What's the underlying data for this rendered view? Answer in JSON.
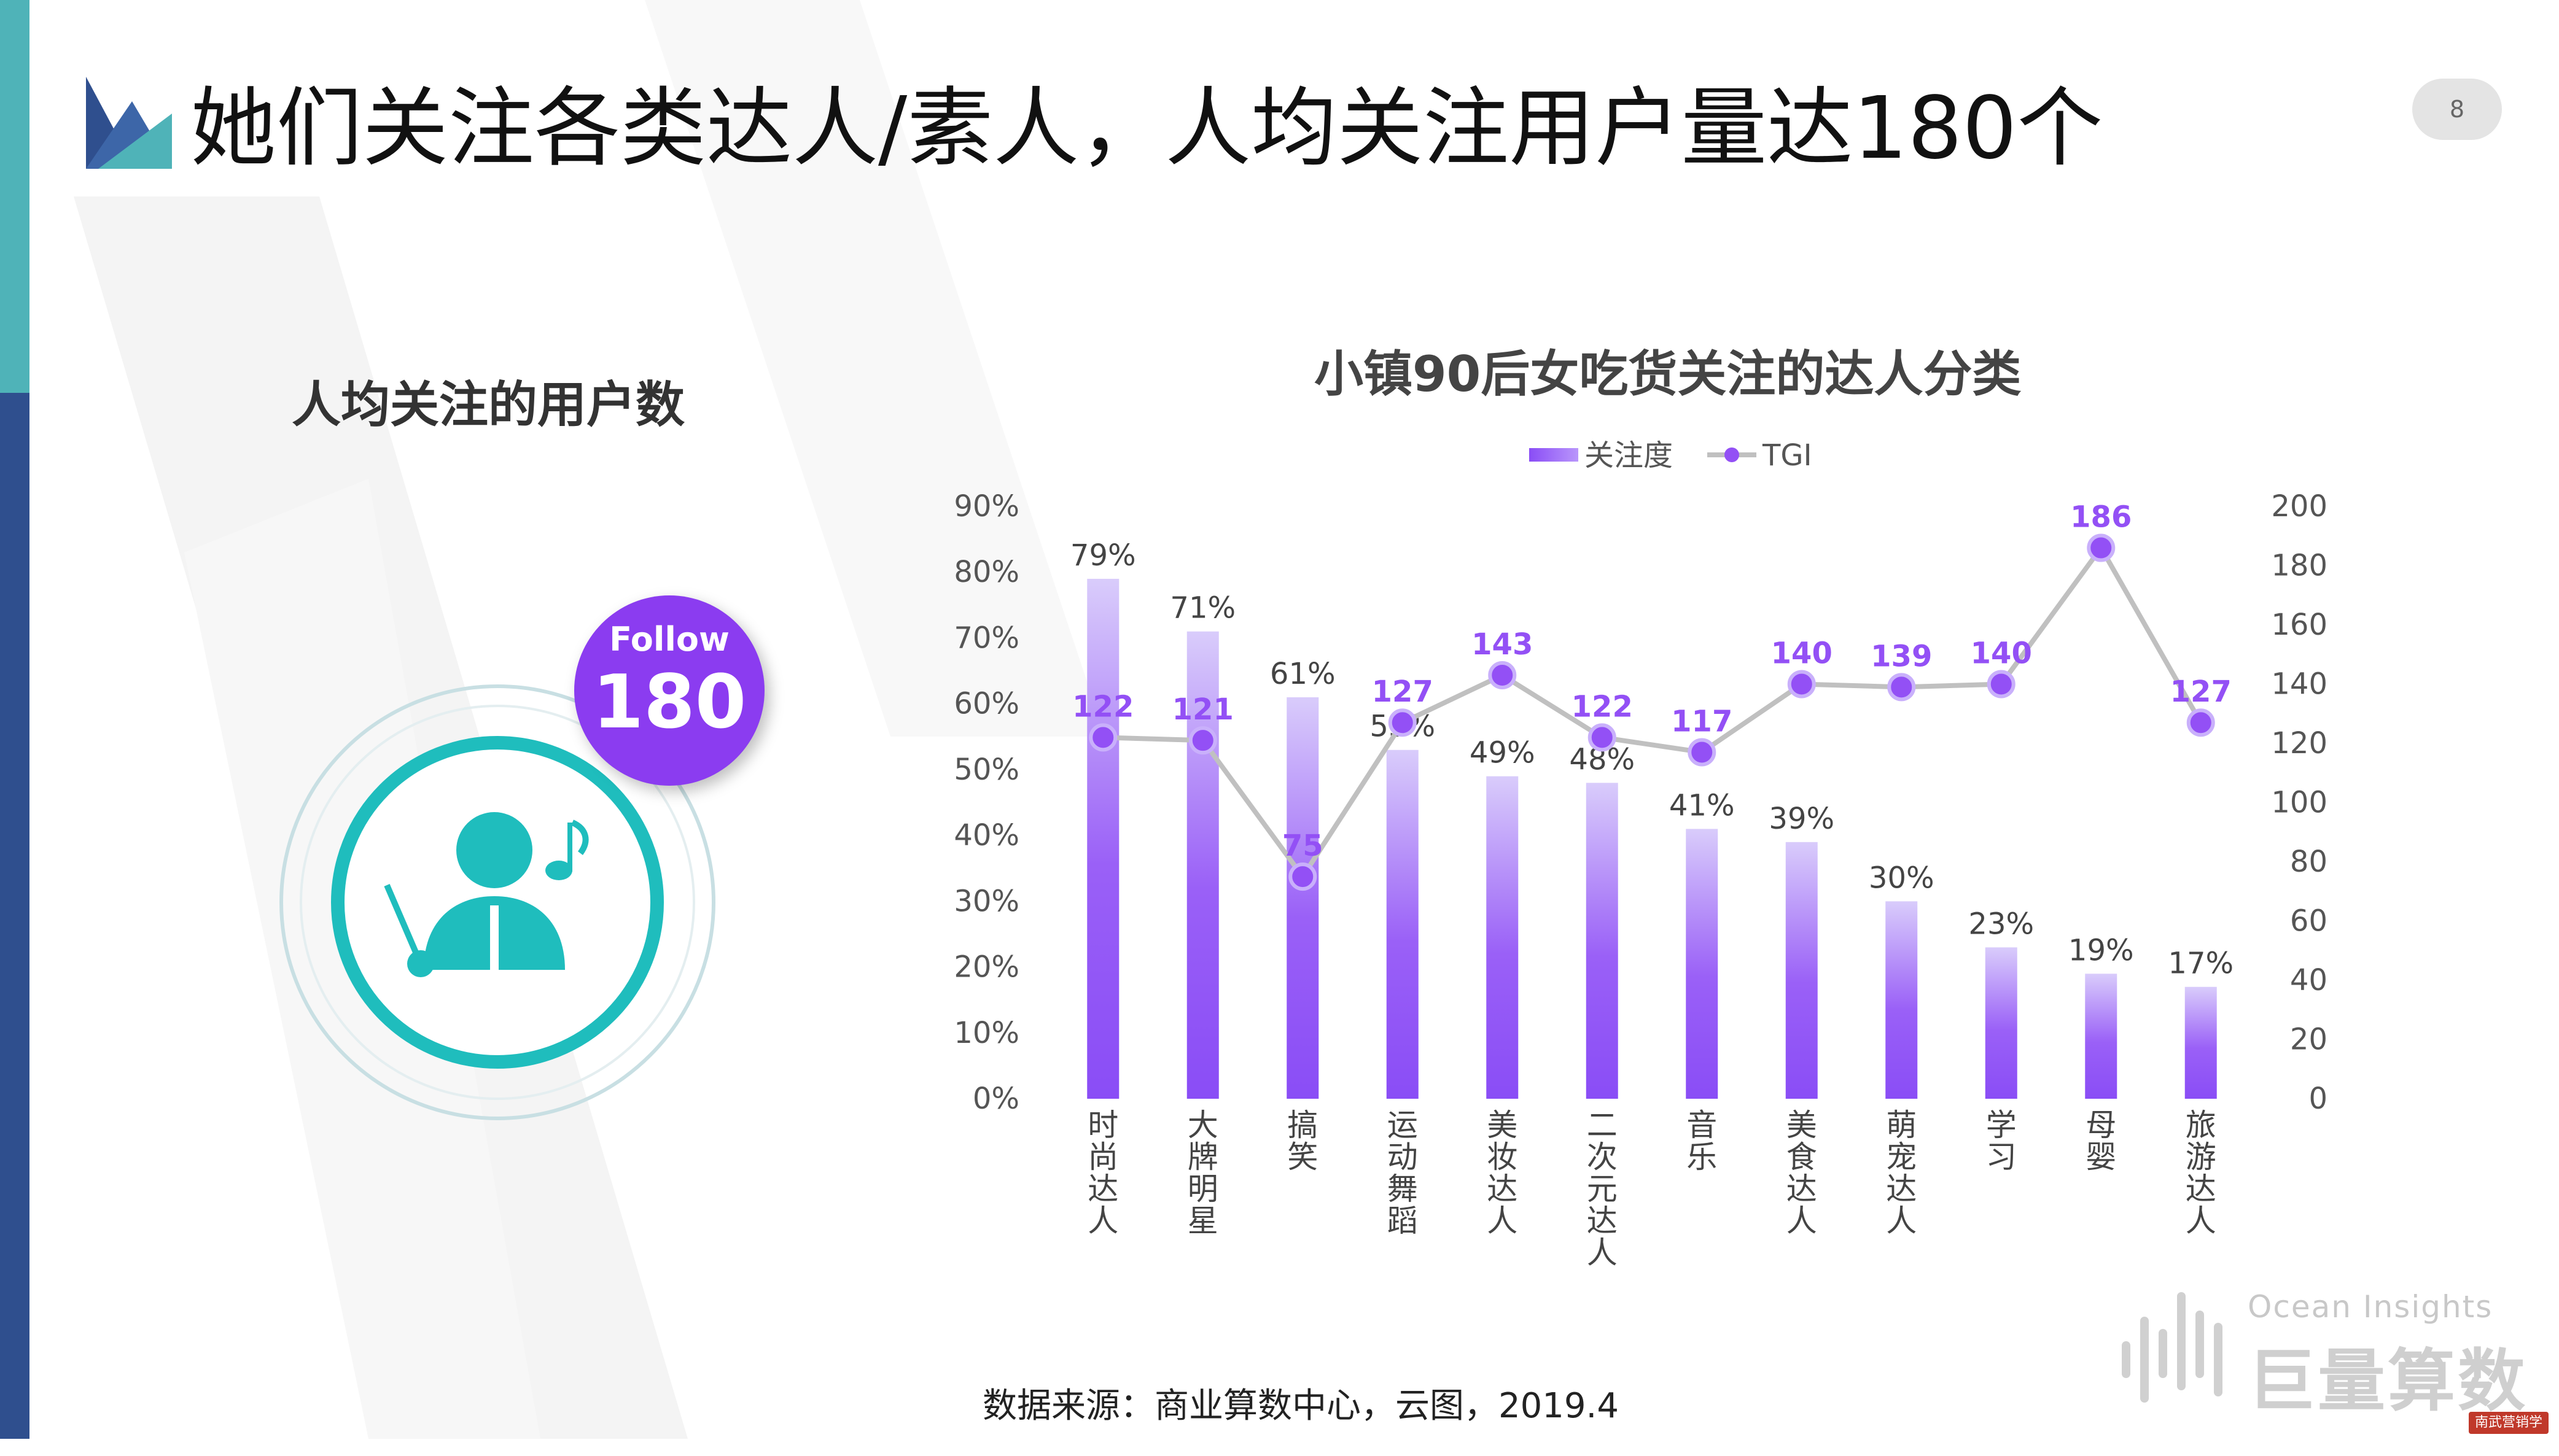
{
  "page": {
    "title": "她们关注各类达人/素人，人均关注用户量达180个",
    "page_number": "8",
    "source": "数据来源：商业算数中心，云图，2019.4"
  },
  "left_panel": {
    "title": "人均关注的用户数",
    "follow_label": "Follow",
    "follow_value": "180"
  },
  "branding": {
    "en": "Ocean Insights",
    "cn": "巨量算数",
    "stamp": "南武营销学院"
  },
  "colors": {
    "bar_purple": "#8a4df6",
    "line_gray": "#c0c0c0",
    "marker_purple": "#9350f5",
    "teal": "#1fbdbd",
    "accent_teal": "#4fb3b8",
    "accent_navy": "#2f4f8e"
  },
  "chart_data": {
    "type": "bar",
    "title": "小镇90后女吃货关注的达人分类",
    "categories": [
      "时尚达人",
      "大牌明星",
      "搞笑",
      "运动舞蹈",
      "美妆达人",
      "二次元达人",
      "音乐",
      "美食达人",
      "萌宠达人",
      "学习",
      "母婴",
      "旅游达人"
    ],
    "series": [
      {
        "name": "关注度",
        "type": "bar",
        "axis": "left",
        "values": [
          79,
          71,
          61,
          53,
          49,
          48,
          41,
          39,
          30,
          23,
          19,
          17
        ],
        "labels": [
          "79%",
          "71%",
          "61%",
          "53%",
          "49%",
          "48%",
          "41%",
          "39%",
          "30%",
          "23%",
          "19%",
          "17%"
        ]
      },
      {
        "name": "TGI",
        "type": "line",
        "axis": "right",
        "values": [
          122,
          121,
          75,
          127,
          143,
          122,
          117,
          140,
          139,
          140,
          186,
          127
        ],
        "labels": [
          "122",
          "121",
          "75",
          "127",
          "143",
          "122",
          "117",
          "140",
          "139",
          "140",
          "186",
          "127"
        ]
      }
    ],
    "y_left": {
      "ylim": [
        0,
        90
      ],
      "ticks": [
        "0%",
        "10%",
        "20%",
        "30%",
        "40%",
        "50%",
        "60%",
        "70%",
        "80%",
        "90%"
      ]
    },
    "y_right": {
      "ylim": [
        0,
        200
      ],
      "ticks": [
        "0",
        "20",
        "40",
        "60",
        "80",
        "100",
        "120",
        "140",
        "160",
        "180",
        "200"
      ]
    },
    "legend": {
      "placement": "top",
      "items": [
        "关注度",
        "TGI"
      ]
    },
    "grid": false
  }
}
